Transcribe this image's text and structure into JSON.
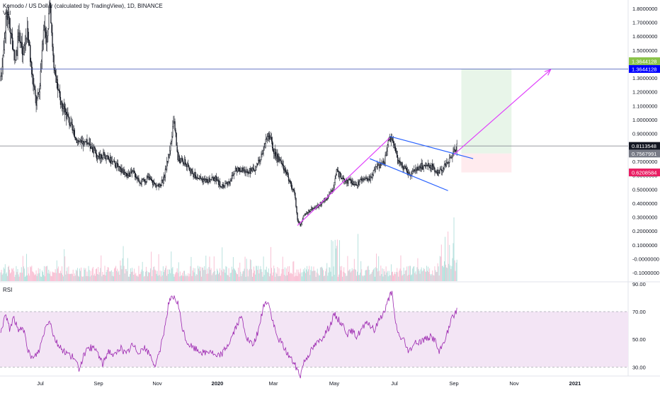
{
  "legend": {
    "title": "Komodo / US Dollar (calculated by TradingView), 1D, BINANCE",
    "volume_label": "Vol"
  },
  "rsi_label": "RSI",
  "colors": {
    "up": "#26a69a",
    "down": "#131722",
    "vol_up": "#b2dfdb",
    "vol_down": "#f8bbd0",
    "rsi_line": "#9c27b0",
    "rsi_band": "#f3e5f5",
    "channel": "#2962ff",
    "projection": "#e040fb",
    "hline": "#3f51b5",
    "price_line": "#787b86",
    "target_zone": "#e8f5e9",
    "stop_zone": "#ffebee"
  },
  "chart_data": [
    {
      "type": "candlestick",
      "title": "Komodo / US Dollar (calculated by TradingView), 1D, BINANCE",
      "x_ticks": [
        "Jul",
        "Sep",
        "Nov",
        "2020",
        "Mar",
        "May",
        "Jul",
        "Sep",
        "Nov",
        "2021"
      ],
      "y_ticks": [
        "1.8000000",
        "1.7000000",
        "1.6000000",
        "1.5000000",
        "1.4000000",
        "1.3000000",
        "1.2000000",
        "1.1000000",
        "1.0000000",
        "0.9000000",
        "0.8000000",
        "0.7000000",
        "0.6000000",
        "0.5000000",
        "0.4000000",
        "0.3000000",
        "0.2000000",
        "0.1000000",
        "-0.0000000",
        "-0.1000000"
      ],
      "ylim": [
        -0.16,
        1.86
      ],
      "price_labels": [
        {
          "text": "1.3644128",
          "value": 1.3644128,
          "color": "#0000ff"
        },
        {
          "text": "1.3644128",
          "value": 1.3644128,
          "color": "#8bc34a"
        },
        {
          "text": "0.8113548",
          "value": 0.8113548,
          "color": "#131722"
        },
        {
          "text": "0.7567991",
          "value": 0.7567991,
          "color": "#787b86"
        },
        {
          "text": "0.6208584",
          "value": 0.6208584,
          "color": "#e91e63"
        }
      ],
      "anchors": [
        {
          "t": 0,
          "v": 1.28
        },
        {
          "t": 5,
          "v": 1.62
        },
        {
          "t": 8,
          "v": 1.78
        },
        {
          "t": 14,
          "v": 1.63
        },
        {
          "t": 19,
          "v": 1.4
        },
        {
          "t": 25,
          "v": 1.62
        },
        {
          "t": 30,
          "v": 1.45
        },
        {
          "t": 36,
          "v": 1.66
        },
        {
          "t": 42,
          "v": 1.34
        },
        {
          "t": 48,
          "v": 1.12
        },
        {
          "t": 52,
          "v": 1.2
        },
        {
          "t": 58,
          "v": 1.68
        },
        {
          "t": 63,
          "v": 1.58
        },
        {
          "t": 67,
          "v": 1.85
        },
        {
          "t": 72,
          "v": 1.35
        },
        {
          "t": 80,
          "v": 1.15
        },
        {
          "t": 90,
          "v": 1.03
        },
        {
          "t": 100,
          "v": 0.88
        },
        {
          "t": 110,
          "v": 0.82
        },
        {
          "t": 120,
          "v": 0.84
        },
        {
          "t": 130,
          "v": 0.74
        },
        {
          "t": 140,
          "v": 0.74
        },
        {
          "t": 150,
          "v": 0.7
        },
        {
          "t": 160,
          "v": 0.66
        },
        {
          "t": 170,
          "v": 0.6
        },
        {
          "t": 180,
          "v": 0.62
        },
        {
          "t": 190,
          "v": 0.55
        },
        {
          "t": 200,
          "v": 0.58
        },
        {
          "t": 210,
          "v": 0.53
        },
        {
          "t": 215,
          "v": 0.52
        },
        {
          "t": 222,
          "v": 0.6
        },
        {
          "t": 230,
          "v": 0.82
        },
        {
          "t": 235,
          "v": 0.99
        },
        {
          "t": 240,
          "v": 0.72
        },
        {
          "t": 250,
          "v": 0.69
        },
        {
          "t": 260,
          "v": 0.61
        },
        {
          "t": 270,
          "v": 0.58
        },
        {
          "t": 280,
          "v": 0.56
        },
        {
          "t": 290,
          "v": 0.58
        },
        {
          "t": 300,
          "v": 0.52
        },
        {
          "t": 310,
          "v": 0.56
        },
        {
          "t": 320,
          "v": 0.65
        },
        {
          "t": 330,
          "v": 0.63
        },
        {
          "t": 340,
          "v": 0.63
        },
        {
          "t": 350,
          "v": 0.69
        },
        {
          "t": 358,
          "v": 0.83
        },
        {
          "t": 363,
          "v": 0.91
        },
        {
          "t": 368,
          "v": 0.8
        },
        {
          "t": 375,
          "v": 0.72
        },
        {
          "t": 385,
          "v": 0.65
        },
        {
          "t": 393,
          "v": 0.53
        },
        {
          "t": 398,
          "v": 0.48
        },
        {
          "t": 402,
          "v": 0.28
        },
        {
          "t": 406,
          "v": 0.24
        },
        {
          "t": 410,
          "v": 0.3
        },
        {
          "t": 420,
          "v": 0.36
        },
        {
          "t": 430,
          "v": 0.38
        },
        {
          "t": 440,
          "v": 0.43
        },
        {
          "t": 450,
          "v": 0.5
        },
        {
          "t": 455,
          "v": 0.63
        },
        {
          "t": 462,
          "v": 0.58
        },
        {
          "t": 470,
          "v": 0.56
        },
        {
          "t": 480,
          "v": 0.54
        },
        {
          "t": 490,
          "v": 0.56
        },
        {
          "t": 500,
          "v": 0.58
        },
        {
          "t": 510,
          "v": 0.66
        },
        {
          "t": 520,
          "v": 0.7
        },
        {
          "t": 527,
          "v": 0.87
        },
        {
          "t": 532,
          "v": 0.85
        },
        {
          "t": 538,
          "v": 0.7
        },
        {
          "t": 548,
          "v": 0.64
        },
        {
          "t": 555,
          "v": 0.6
        },
        {
          "t": 565,
          "v": 0.66
        },
        {
          "t": 575,
          "v": 0.67
        },
        {
          "t": 585,
          "v": 0.66
        },
        {
          "t": 592,
          "v": 0.62
        },
        {
          "t": 600,
          "v": 0.66
        },
        {
          "t": 608,
          "v": 0.7
        },
        {
          "t": 614,
          "v": 0.77
        },
        {
          "t": 618,
          "v": 0.81
        }
      ],
      "rsi": {
        "y_ticks": [
          "90.00",
          "70.00",
          "50.00",
          "30.00"
        ],
        "ylim": [
          24,
          91
        ],
        "band": [
          30,
          70
        ],
        "anchors": [
          {
            "t": 0,
            "v": 55
          },
          {
            "t": 6,
            "v": 68
          },
          {
            "t": 12,
            "v": 58
          },
          {
            "t": 18,
            "v": 66
          },
          {
            "t": 24,
            "v": 55
          },
          {
            "t": 30,
            "v": 60
          },
          {
            "t": 36,
            "v": 42
          },
          {
            "t": 44,
            "v": 36
          },
          {
            "t": 52,
            "v": 42
          },
          {
            "t": 60,
            "v": 58
          },
          {
            "t": 66,
            "v": 65
          },
          {
            "t": 72,
            "v": 52
          },
          {
            "t": 80,
            "v": 44
          },
          {
            "t": 90,
            "v": 40
          },
          {
            "t": 98,
            "v": 37
          },
          {
            "t": 106,
            "v": 29
          },
          {
            "t": 114,
            "v": 40
          },
          {
            "t": 122,
            "v": 44
          },
          {
            "t": 130,
            "v": 42
          },
          {
            "t": 138,
            "v": 32
          },
          {
            "t": 146,
            "v": 42
          },
          {
            "t": 154,
            "v": 38
          },
          {
            "t": 162,
            "v": 44
          },
          {
            "t": 170,
            "v": 39
          },
          {
            "t": 178,
            "v": 46
          },
          {
            "t": 186,
            "v": 41
          },
          {
            "t": 194,
            "v": 44
          },
          {
            "t": 202,
            "v": 39
          },
          {
            "t": 210,
            "v": 30
          },
          {
            "t": 216,
            "v": 43
          },
          {
            "t": 222,
            "v": 58
          },
          {
            "t": 228,
            "v": 78
          },
          {
            "t": 234,
            "v": 80
          },
          {
            "t": 240,
            "v": 76
          },
          {
            "t": 246,
            "v": 58
          },
          {
            "t": 252,
            "v": 48
          },
          {
            "t": 260,
            "v": 44
          },
          {
            "t": 268,
            "v": 42
          },
          {
            "t": 276,
            "v": 40
          },
          {
            "t": 284,
            "v": 42
          },
          {
            "t": 292,
            "v": 37
          },
          {
            "t": 300,
            "v": 40
          },
          {
            "t": 310,
            "v": 48
          },
          {
            "t": 318,
            "v": 58
          },
          {
            "t": 326,
            "v": 66
          },
          {
            "t": 334,
            "v": 50
          },
          {
            "t": 342,
            "v": 45
          },
          {
            "t": 350,
            "v": 58
          },
          {
            "t": 356,
            "v": 74
          },
          {
            "t": 362,
            "v": 78
          },
          {
            "t": 368,
            "v": 64
          },
          {
            "t": 374,
            "v": 52
          },
          {
            "t": 380,
            "v": 48
          },
          {
            "t": 388,
            "v": 40
          },
          {
            "t": 396,
            "v": 34
          },
          {
            "t": 402,
            "v": 28
          },
          {
            "t": 406,
            "v": 24
          },
          {
            "t": 410,
            "v": 33
          },
          {
            "t": 418,
            "v": 40
          },
          {
            "t": 426,
            "v": 46
          },
          {
            "t": 434,
            "v": 50
          },
          {
            "t": 440,
            "v": 55
          },
          {
            "t": 446,
            "v": 60
          },
          {
            "t": 452,
            "v": 68
          },
          {
            "t": 458,
            "v": 64
          },
          {
            "t": 464,
            "v": 60
          },
          {
            "t": 470,
            "v": 54
          },
          {
            "t": 476,
            "v": 56
          },
          {
            "t": 482,
            "v": 52
          },
          {
            "t": 490,
            "v": 58
          },
          {
            "t": 498,
            "v": 62
          },
          {
            "t": 506,
            "v": 56
          },
          {
            "t": 514,
            "v": 66
          },
          {
            "t": 520,
            "v": 70
          },
          {
            "t": 526,
            "v": 80
          },
          {
            "t": 530,
            "v": 84
          },
          {
            "t": 534,
            "v": 64
          },
          {
            "t": 540,
            "v": 52
          },
          {
            "t": 546,
            "v": 50
          },
          {
            "t": 552,
            "v": 40
          },
          {
            "t": 558,
            "v": 46
          },
          {
            "t": 566,
            "v": 48
          },
          {
            "t": 574,
            "v": 50
          },
          {
            "t": 582,
            "v": 52
          },
          {
            "t": 588,
            "v": 50
          },
          {
            "t": 594,
            "v": 40
          },
          {
            "t": 600,
            "v": 48
          },
          {
            "t": 606,
            "v": 56
          },
          {
            "t": 612,
            "v": 66
          },
          {
            "t": 618,
            "v": 71
          }
        ]
      },
      "drawings": {
        "hlines": [
          1.3644128,
          0.8113548
        ],
        "channel_upper": [
          [
            527,
            0.88
          ],
          [
            640,
            0.72
          ]
        ],
        "channel_lower": [
          [
            500,
            0.72
          ],
          [
            606,
            0.49
          ]
        ],
        "projection_lines": [
          [
            [
              402,
              0.24
            ],
            [
              527,
              0.87
            ]
          ],
          [
            [
              614,
              0.75
            ],
            [
              745,
              1.36
            ]
          ]
        ],
        "target_zone": {
          "t0": 624,
          "t1": 692,
          "top": 1.3644128,
          "bottom": 0.7567991
        },
        "stop_zone": {
          "t0": 624,
          "t1": 692,
          "top": 0.7567991,
          "bottom": 0.6208584
        }
      }
    }
  ]
}
